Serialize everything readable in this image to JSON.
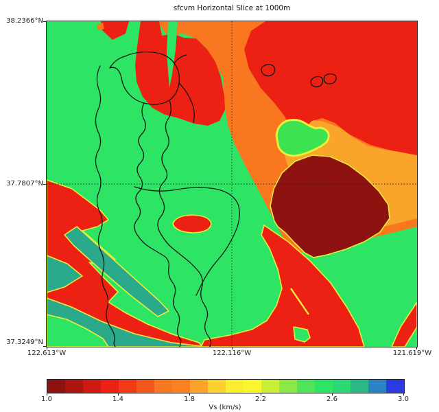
{
  "figure": {
    "title": "sfcvm Horizontal Slice at 1000m"
  },
  "axes": {
    "lat_ticks": [
      "38.2366°N",
      "37.7807°N",
      "37.3249°N"
    ],
    "lon_ticks": [
      "122.613°W",
      "122.116°W",
      "121.619°W"
    ]
  },
  "colorbar": {
    "label": "Vs (km/s)",
    "ticks": [
      "1.0",
      "1.4",
      "1.8",
      "2.2",
      "2.6",
      "3.0"
    ],
    "vmin": 1.0,
    "vmax": 3.0,
    "segments": [
      "#8e1310",
      "#ac1510",
      "#ce1a11",
      "#ec2113",
      "#f13b15",
      "#f4571b",
      "#f8771f",
      "#f98121",
      "#fba42b",
      "#fbd131",
      "#f8ee2f",
      "#f9f52f",
      "#c9ee36",
      "#8ae947",
      "#50e45a",
      "#2de465",
      "#2bd974",
      "#2bb985",
      "#2b82c4",
      "#2a3be0"
    ]
  },
  "map_colors": {
    "background_green": "#2de465",
    "red": "#ec2113",
    "dark_orange": "#f8771f",
    "light_orange": "#fba42b",
    "dark_maroon": "#8e1310",
    "teal": "#2aa98b",
    "green_pocket": "#3ce24f",
    "yellow_seam": "#e9ec3a",
    "coastline": "#141414"
  },
  "chart_data": {
    "type": "heatmap",
    "title": "sfcvm Horizontal Slice at 1000m",
    "model": "sfcvm",
    "slice_depth_m": 1000,
    "variable": "Vs",
    "units": "km/s",
    "lat_range": [
      37.3249,
      38.2366
    ],
    "lon_range": [
      -122.613,
      -121.619
    ],
    "lat_ticks": [
      38.2366,
      37.7807,
      37.3249
    ],
    "lon_ticks": [
      -122.613,
      -122.116,
      -121.619
    ],
    "colorbar_ticks": [
      1.0,
      1.4,
      1.8,
      2.2,
      2.6,
      3.0
    ],
    "colorbar_levels": 20,
    "level_step_kms": 0.1,
    "grid": "dotted crosshair at 122.116W and 37.7807N",
    "legend_position": "horizontal colorbar below map",
    "overlay": "black coastline outlines of San Francisco Bay, San Pablo Bay, peninsula coast and small islands",
    "regions": [
      {
        "name": "central-peninsula-green-block",
        "approx_vs_kms": 2.55
      },
      {
        "name": "san-pablo-bay-red-patch",
        "approx_vs_kms": 1.35
      },
      {
        "name": "northeast-red-region",
        "approx_vs_kms": 1.35
      },
      {
        "name": "diagonal-dark-orange-band",
        "approx_vs_kms": 1.65
      },
      {
        "name": "east-light-orange-band",
        "approx_vs_kms": 1.85
      },
      {
        "name": "east-dark-maroon-basin",
        "approx_vs_kms": 1.05
      },
      {
        "name": "east-green-pocket-with-yellow-ring",
        "approx_vs_kms": 2.45
      },
      {
        "name": "southwest-coastal-red-region",
        "approx_vs_kms": 1.35
      },
      {
        "name": "southwest-teal-diagonal-bands",
        "approx_vs_kms": 2.75
      },
      {
        "name": "center-south-red-diagonal-band",
        "approx_vs_kms": 1.35
      },
      {
        "name": "yellow-transition-seams",
        "approx_vs_kms": 2.1
      },
      {
        "name": "southeast-green-region",
        "approx_vs_kms": 2.55
      }
    ]
  }
}
